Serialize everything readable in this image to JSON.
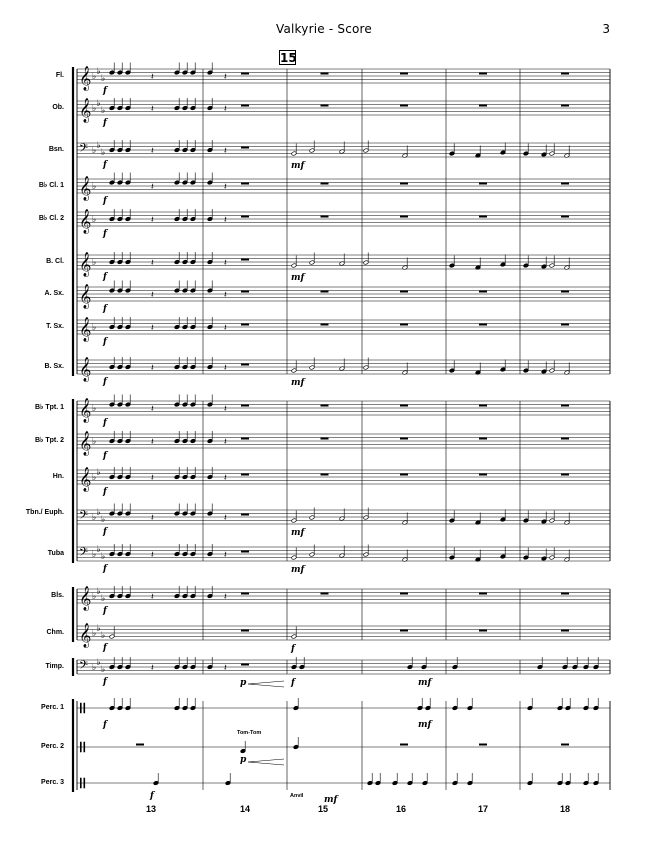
{
  "header": {
    "title": "Valkyrie - Score",
    "page_number": "3"
  },
  "rehearsal_mark": "15",
  "instruments": [
    {
      "name": "Fl.",
      "clef": "treble",
      "flats": 3
    },
    {
      "name": "Ob.",
      "clef": "treble",
      "flats": 3
    },
    {
      "name": "Bsn.",
      "clef": "bass",
      "flats": 3
    },
    {
      "name": "B♭ Cl. 1",
      "clef": "treble",
      "flats": 1
    },
    {
      "name": "B♭ Cl. 2",
      "clef": "treble",
      "flats": 1
    },
    {
      "name": "B. Cl.",
      "clef": "treble",
      "flats": 1
    },
    {
      "name": "A. Sx.",
      "clef": "treble",
      "flats": 0
    },
    {
      "name": "T. Sx.",
      "clef": "treble",
      "flats": 1
    },
    {
      "name": "B. Sx.",
      "clef": "treble",
      "flats": 0
    },
    {
      "name": "B♭ Tpt. 1",
      "clef": "treble",
      "flats": 1
    },
    {
      "name": "B♭ Tpt. 2",
      "clef": "treble",
      "flats": 1
    },
    {
      "name": "Hn.",
      "clef": "treble",
      "flats": 2
    },
    {
      "name": "Tbn./ Euph.",
      "clef": "bass",
      "flats": 3
    },
    {
      "name": "Tuba",
      "clef": "bass",
      "flats": 3
    },
    {
      "name": "Bls.",
      "clef": "treble",
      "flats": 3
    },
    {
      "name": "Chm.",
      "clef": "treble",
      "flats": 3
    },
    {
      "name": "Timp.",
      "clef": "bass",
      "flats": 3
    },
    {
      "name": "Perc. 1",
      "clef": "perc",
      "flats": 0
    },
    {
      "name": "Perc. 2",
      "clef": "perc",
      "flats": 0
    },
    {
      "name": "Perc. 3",
      "clef": "perc",
      "flats": 0
    }
  ],
  "measure_numbers": [
    "13",
    "14",
    "15",
    "16",
    "17",
    "18"
  ],
  "annotations": {
    "tom_tom": "Tom-Tom",
    "anvil": "Anvil"
  },
  "dynamics": {
    "forte": "f",
    "mezzo_forte": "mf",
    "piano": "p"
  }
}
